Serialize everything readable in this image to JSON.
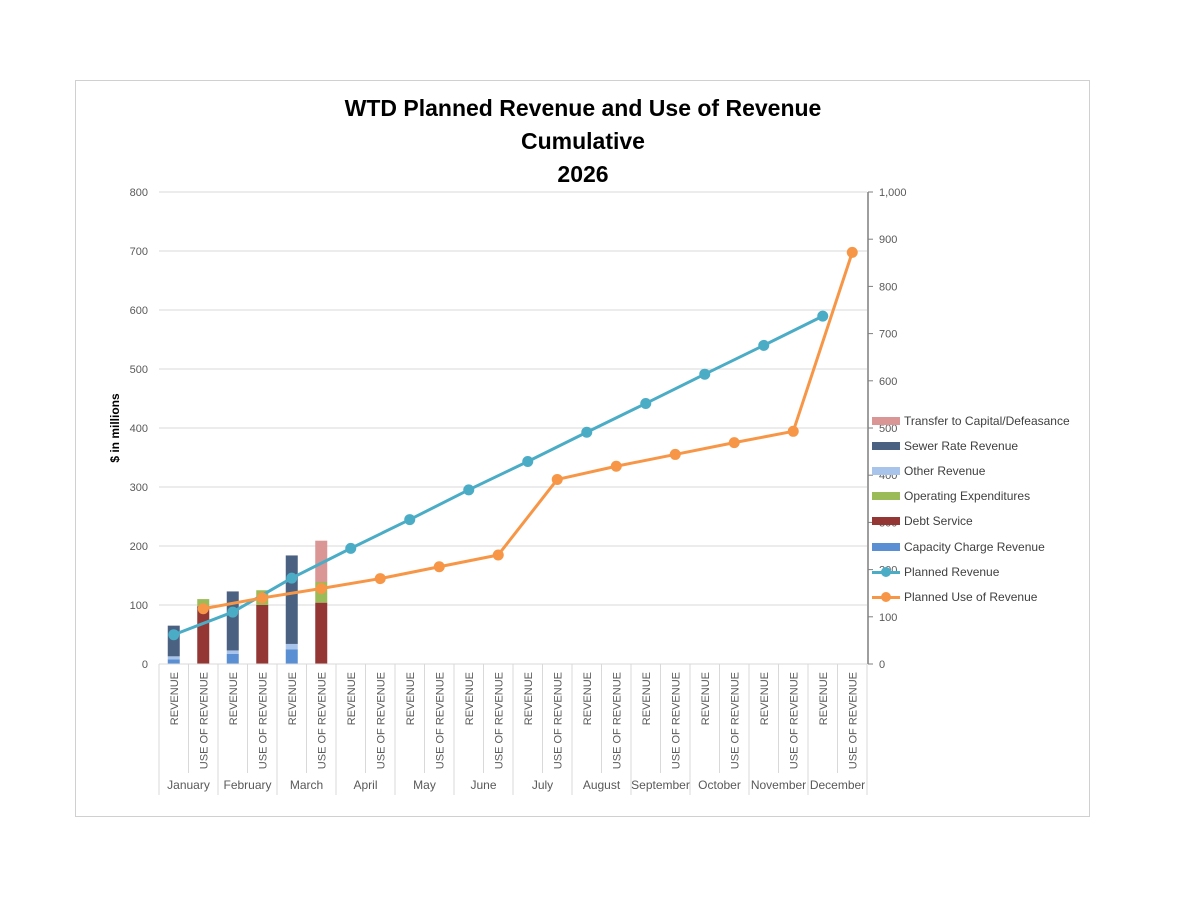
{
  "chart_data": {
    "type": "bar",
    "title": [
      "WTD Planned Revenue and Use of Revenue",
      "Cumulative",
      "2026"
    ],
    "ylabel": "$ in millions",
    "ylim": [
      0,
      800
    ],
    "y_ticks": [
      "0",
      "100",
      "200",
      "300",
      "400",
      "500",
      "600",
      "700",
      "800"
    ],
    "y2lim": [
      0,
      1000
    ],
    "y2_ticks": [
      "0",
      "100",
      "200",
      "300",
      "400",
      "500",
      "600",
      "700",
      "800",
      "900",
      "1,000"
    ],
    "months": [
      "January",
      "February",
      "March",
      "April",
      "May",
      "June",
      "July",
      "August",
      "September",
      "October",
      "November",
      "December"
    ],
    "sub_categories": [
      "REVENUE",
      "USE OF REVENUE"
    ],
    "grid": true,
    "legend_position": "right",
    "stacked_series": [
      {
        "name": "Capacity Charge Revenue",
        "color": "#5b8fd4",
        "bar": "REVENUE",
        "values": [
          8,
          17,
          25,
          0,
          0,
          0,
          0,
          0,
          0,
          0,
          0,
          0
        ]
      },
      {
        "name": "Other Revenue",
        "color": "#a9c4eb",
        "bar": "REVENUE",
        "values": [
          5,
          6,
          9,
          0,
          0,
          0,
          0,
          0,
          0,
          0,
          0,
          0
        ]
      },
      {
        "name": "Sewer Rate Revenue",
        "color": "#4a6182",
        "bar": "REVENUE",
        "values": [
          52,
          100,
          150,
          0,
          0,
          0,
          0,
          0,
          0,
          0,
          0,
          0
        ]
      },
      {
        "name": "Debt Service",
        "color": "#943634",
        "bar": "USE OF REVENUE",
        "values": [
          98,
          100,
          104,
          0,
          0,
          0,
          0,
          0,
          0,
          0,
          0,
          0
        ]
      },
      {
        "name": "Operating Expenditures",
        "color": "#9bbb59",
        "bar": "USE OF REVENUE",
        "values": [
          12,
          25,
          35,
          0,
          0,
          0,
          0,
          0,
          0,
          0,
          0,
          0
        ]
      },
      {
        "name": "Transfer to Capital/Defeasance",
        "color": "#d99694",
        "bar": "USE OF REVENUE",
        "values": [
          0,
          0,
          70,
          0,
          0,
          0,
          0,
          0,
          0,
          0,
          0,
          0
        ]
      }
    ],
    "line_series": [
      {
        "name": "Planned Revenue",
        "color": "#4bacc6",
        "axis": "secondary",
        "anchor": "REVENUE",
        "values": [
          62,
          110,
          182,
          245,
          306,
          369,
          429,
          491,
          552,
          614,
          675,
          737
        ]
      },
      {
        "name": "Planned Use of Revenue",
        "color": "#f79646",
        "axis": "secondary",
        "anchor": "USE OF REVENUE",
        "values": [
          117,
          140,
          160,
          181,
          206,
          231,
          391,
          419,
          444,
          469,
          493,
          872
        ]
      }
    ],
    "legend_order": [
      "Transfer to Capital/Defeasance",
      "Sewer Rate Revenue",
      "Other Revenue",
      "Operating Expenditures",
      "Debt Service",
      "Capacity Charge Revenue",
      "Planned Revenue",
      "Planned Use of Revenue"
    ]
  }
}
